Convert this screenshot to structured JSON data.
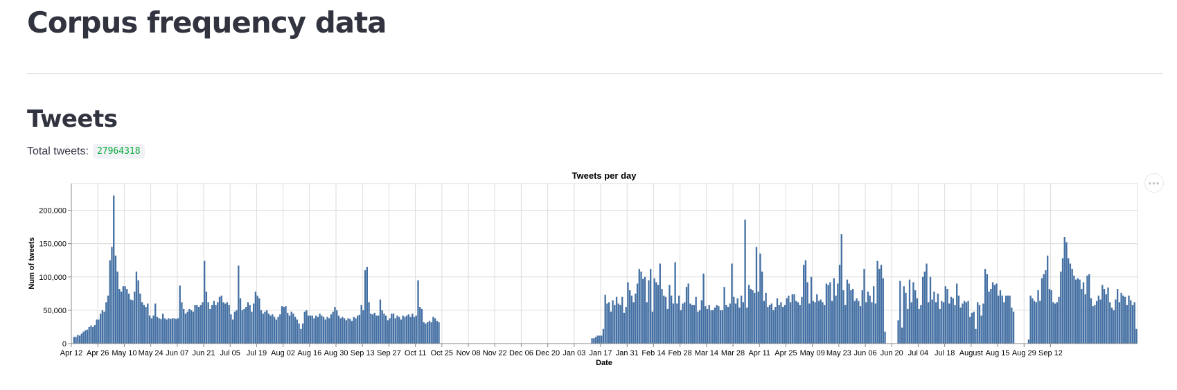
{
  "page": {
    "title": "Corpus frequency data",
    "section_title": "Tweets",
    "total_label": "Total tweets:",
    "total_value": "27964318",
    "menu_icon": "more-horizontal-icon"
  },
  "colors": {
    "bar": "#4470a3",
    "grid": "#dcdcdc",
    "accent_value": "#09ab3b"
  },
  "chart_data": {
    "type": "bar",
    "title": "Tweets per day",
    "xlabel": "Date",
    "ylabel": "Num of tweets",
    "ylim": [
      0,
      240000
    ],
    "yticks": [
      0,
      50000,
      100000,
      150000,
      200000
    ],
    "ytick_labels": [
      "0",
      "50,000",
      "100,000",
      "150,000",
      "200,000"
    ],
    "grid": true,
    "xtick_labels": [
      "Apr 12",
      "Apr 26",
      "May 10",
      "May 24",
      "Jun 07",
      "Jun 21",
      "Jul 05",
      "Jul 19",
      "Aug 02",
      "Aug 16",
      "Aug 30",
      "Sep 13",
      "Sep 27",
      "Oct 11",
      "Oct 25",
      "Nov 08",
      "Nov 22",
      "Dec 06",
      "Dec 20",
      "Jan 03",
      "Jan 17",
      "Jan 31",
      "Feb 14",
      "Feb 28",
      "Mar 14",
      "Mar 28",
      "Apr 11",
      "Apr 25",
      "May 09",
      "May 23",
      "Jun 06",
      "Jun 20",
      "Jul 04",
      "Jul 18",
      "August",
      "Aug 15",
      "Aug 29",
      "Sep 12"
    ],
    "day_start": "Apr 12",
    "values": [
      0,
      10000,
      10000,
      13000,
      12000,
      15000,
      18000,
      20000,
      21000,
      25000,
      27000,
      25000,
      28000,
      36000,
      36000,
      45000,
      50000,
      48000,
      62000,
      72000,
      125000,
      145000,
      222000,
      132000,
      108000,
      82000,
      78000,
      86000,
      86000,
      82000,
      75000,
      66000,
      65000,
      78000,
      108000,
      95000,
      75000,
      62000,
      58000,
      55000,
      60000,
      42000,
      38000,
      42000,
      60000,
      40000,
      38000,
      37000,
      45000,
      38000,
      36000,
      38000,
      37000,
      38000,
      38000,
      37000,
      38000,
      87000,
      62000,
      52000,
      45000,
      48000,
      52000,
      50000,
      48000,
      58000,
      58000,
      55000,
      58000,
      62000,
      124000,
      78000,
      62000,
      52000,
      58000,
      64000,
      58000,
      62000,
      70000,
      72000,
      62000,
      60000,
      62000,
      58000,
      44000,
      36000,
      48000,
      50000,
      117000,
      68000,
      50000,
      52000,
      55000,
      62000,
      58000,
      48000,
      60000,
      78000,
      72000,
      68000,
      50000,
      45000,
      48000,
      50000,
      45000,
      42000,
      44000,
      40000,
      36000,
      40000,
      44000,
      56000,
      55000,
      56000,
      46000,
      42000,
      48000,
      45000,
      40000,
      36000,
      30000,
      22000,
      30000,
      48000,
      50000,
      42000,
      42000,
      42000,
      38000,
      42000,
      40000,
      45000,
      42000,
      40000,
      36000,
      40000,
      38000,
      44000,
      48000,
      55000,
      50000,
      42000,
      38000,
      40000,
      38000,
      35000,
      38000,
      37000,
      34000,
      40000,
      38000,
      42000,
      43000,
      58000,
      50000,
      110000,
      115000,
      62000,
      45000,
      44000,
      46000,
      42000,
      42000,
      66000,
      50000,
      45000,
      42000,
      35000,
      38000,
      45000,
      45000,
      38000,
      42000,
      40000,
      36000,
      42000,
      40000,
      42000,
      44000,
      40000,
      45000,
      40000,
      42000,
      95000,
      55000,
      52000,
      32000,
      30000,
      32000,
      34000,
      32000,
      40000,
      38000,
      34000,
      32000,
      0,
      0,
      0,
      0,
      0,
      0,
      0,
      0,
      0,
      0,
      0,
      0,
      0,
      0,
      0,
      0,
      0,
      0,
      0,
      0,
      0,
      0,
      0,
      0,
      0,
      0,
      0,
      0,
      0,
      0,
      0,
      0,
      0,
      0,
      0,
      0,
      0,
      0,
      0,
      0,
      0,
      0,
      0,
      0,
      0,
      0,
      0,
      0,
      0,
      0,
      0,
      0,
      0,
      0,
      0,
      0,
      0,
      0,
      0,
      0,
      0,
      0,
      0,
      0,
      0,
      0,
      0,
      0,
      0,
      0,
      0,
      0,
      0,
      0,
      0,
      0,
      0,
      0,
      0,
      0,
      8000,
      8000,
      10000,
      12000,
      12000,
      12000,
      22000,
      73000,
      60000,
      62000,
      48000,
      65000,
      58000,
      70000,
      60000,
      58000,
      70000,
      46000,
      55000,
      92000,
      80000,
      72000,
      62000,
      75000,
      90000,
      112000,
      108000,
      97000,
      100000,
      62000,
      95000,
      112000,
      48000,
      98000,
      92000,
      88000,
      120000,
      82000,
      72000,
      70000,
      52000,
      88000,
      72000,
      60000,
      122000,
      60000,
      72000,
      50000,
      60000,
      62000,
      85000,
      90000,
      60000,
      58000,
      58000,
      70000,
      48000,
      50000,
      65000,
      105000,
      56000,
      52000,
      58000,
      50000,
      50000,
      54000,
      58000,
      56000,
      50000,
      50000,
      85000,
      58000,
      55000,
      60000,
      120000,
      70000,
      60000,
      68000,
      54000,
      72000,
      62000,
      186000,
      54000,
      88000,
      82000,
      80000,
      76000,
      145000,
      78000,
      135000,
      108000,
      64000,
      76000,
      55000,
      58000,
      60000,
      50000,
      55000,
      68000,
      58000,
      62000,
      55000,
      58000,
      68000,
      72000,
      62000,
      74000,
      74000,
      64000,
      62000,
      58000,
      70000,
      118000,
      125000,
      92000,
      60000,
      100000,
      64000,
      62000,
      74000,
      64000,
      66000,
      62000,
      58000,
      90000,
      88000,
      92000,
      64000,
      98000,
      72000,
      90000,
      118000,
      164000,
      80000,
      58000,
      96000,
      90000,
      80000,
      82000,
      64000,
      68000,
      64000,
      56000,
      80000,
      112000,
      62000,
      78000,
      72000,
      62000,
      86000,
      60000,
      124000,
      112000,
      118000,
      98000,
      18000,
      0,
      0,
      0,
      0,
      0,
      0,
      35000,
      94000,
      24000,
      86000,
      76000,
      52000,
      96000,
      62000,
      92000,
      80000,
      68000,
      52000,
      58000,
      100000,
      108000,
      120000,
      62000,
      100000,
      66000,
      78000,
      62000,
      75000,
      52000,
      64000,
      62000,
      86000,
      82000,
      60000,
      70000,
      68000,
      58000,
      90000,
      72000,
      54000,
      60000,
      64000,
      62000,
      64000,
      40000,
      46000,
      48000,
      22000,
      62000,
      58000,
      42000,
      60000,
      112000,
      104000,
      78000,
      82000,
      92000,
      88000,
      90000,
      72000,
      80000,
      72000,
      62000,
      72000,
      72000,
      72000,
      54000,
      48000,
      0,
      0,
      0,
      0,
      0,
      0,
      0,
      6000,
      72000,
      68000,
      64000,
      62000,
      80000,
      64000,
      98000,
      104000,
      110000,
      132000,
      82000,
      80000,
      62000,
      60000,
      62000,
      70000,
      108000,
      128000,
      160000,
      152000,
      128000,
      120000,
      112000,
      102000,
      96000,
      98000,
      96000,
      82000,
      92000,
      74000,
      102000,
      104000,
      68000,
      56000,
      58000,
      64000,
      72000,
      66000,
      88000,
      82000,
      74000,
      84000,
      62000,
      54000,
      50000,
      66000,
      82000,
      62000,
      76000,
      72000,
      70000,
      58000,
      72000,
      65000,
      58000,
      62000,
      22000
    ]
  }
}
